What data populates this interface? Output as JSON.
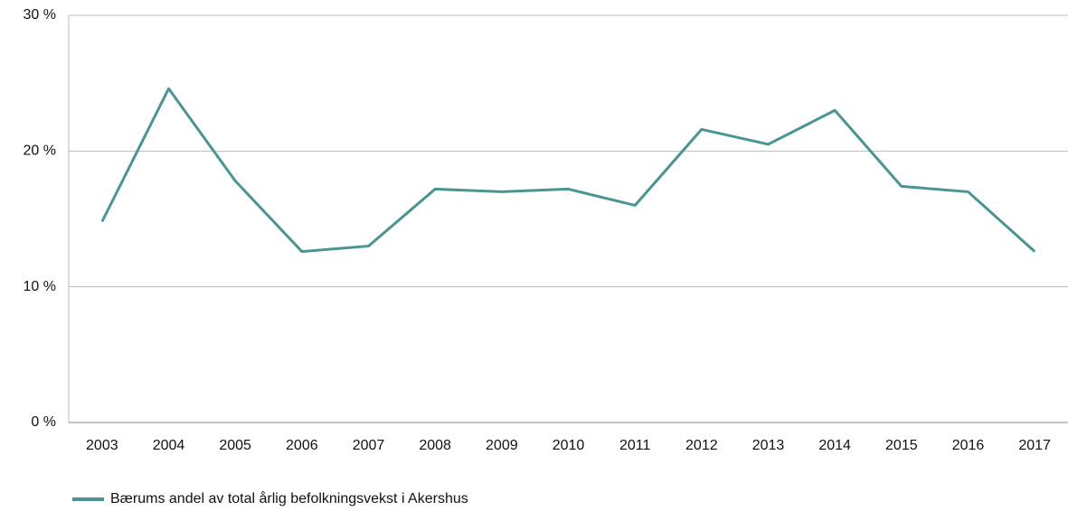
{
  "chart_data": {
    "type": "line",
    "categories": [
      "2003",
      "2004",
      "2005",
      "2006",
      "2007",
      "2008",
      "2009",
      "2010",
      "2011",
      "2012",
      "2013",
      "2014",
      "2015",
      "2016",
      "2017"
    ],
    "series": [
      {
        "name": "Bærums andel av total årlig befolkningsvekst i Akershus",
        "color": "#4a9592",
        "values": [
          14.8,
          24.6,
          17.8,
          12.6,
          13.0,
          17.2,
          17.0,
          17.2,
          16.0,
          21.6,
          20.5,
          23.0,
          17.4,
          17.0,
          12.6
        ]
      }
    ],
    "ylim": [
      0,
      30
    ],
    "yticks": [
      {
        "value": 0,
        "label": "0 %"
      },
      {
        "value": 10,
        "label": "10 %"
      },
      {
        "value": 20,
        "label": "20 %"
      },
      {
        "value": 30,
        "label": "30 %"
      }
    ],
    "grid": true,
    "legend": "bottom-left"
  }
}
